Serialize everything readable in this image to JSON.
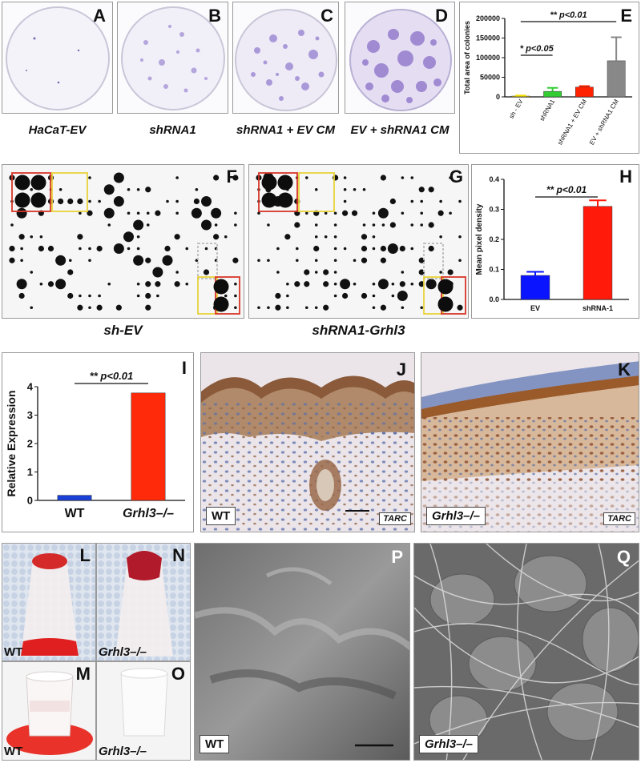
{
  "panels": {
    "A": {
      "label": "A",
      "caption": "HaCaT-EV"
    },
    "B": {
      "label": "B",
      "caption": "shRNA1"
    },
    "C": {
      "label": "C",
      "caption": "shRNA1 + EV CM"
    },
    "D": {
      "label": "D",
      "caption": "EV + shRNA1 CM"
    },
    "E": {
      "label": "E"
    },
    "F": {
      "label": "F",
      "caption": "sh-EV"
    },
    "G": {
      "label": "G",
      "caption": "shRNA1-Grhl3"
    },
    "H": {
      "label": "H"
    },
    "I": {
      "label": "I"
    },
    "J": {
      "label": "J",
      "tag_genotype": "WT",
      "tag_marker": "TARC"
    },
    "K": {
      "label": "K",
      "tag_genotype": "Grhl3–/–",
      "tag_marker": "TARC"
    },
    "L": {
      "label": "L",
      "tag": "WT"
    },
    "M": {
      "label": "M",
      "tag": "WT"
    },
    "N": {
      "label": "N",
      "tag": "Grhl3–/–"
    },
    "O": {
      "label": "O",
      "tag": "Grhl3–/–"
    },
    "P": {
      "label": "P",
      "tag": "WT"
    },
    "Q": {
      "label": "Q",
      "tag": "Grhl3–/–"
    }
  },
  "chart_data": [
    {
      "panel": "E",
      "type": "bar",
      "ylabel": "Total area of colonies",
      "categories": [
        "sh - EV",
        "shRNA1",
        "shRNA1 + EV CM",
        "EV + shRNA1 CM"
      ],
      "values": [
        2000,
        14000,
        25000,
        92000
      ],
      "errors": [
        1500,
        9000,
        2500,
        60000
      ],
      "colors": [
        "#f5e000",
        "#33cc33",
        "#ff2200",
        "#888888"
      ],
      "yticks": [
        "0",
        "50000",
        "100000",
        "150000",
        "200000"
      ],
      "ylim": [
        0,
        200000
      ],
      "annotations": [
        {
          "text": "* p<0.05",
          "from": 0,
          "to": 1
        },
        {
          "text": "** p<0.01",
          "from": 0,
          "to": 3
        }
      ]
    },
    {
      "panel": "H",
      "type": "bar",
      "ylabel": "Mean pixel density",
      "categories": [
        "EV",
        "shRNA-1"
      ],
      "values": [
        0.08,
        0.31
      ],
      "errors": [
        0.012,
        0.02
      ],
      "colors": [
        "#0a14ff",
        "#ff1a0a"
      ],
      "yticks": [
        "0.0",
        "0.1",
        "0.2",
        "0.3",
        "0.4"
      ],
      "ylim": [
        0,
        0.4
      ],
      "annotations": [
        {
          "text": "** p<0.01",
          "from": 0,
          "to": 1
        }
      ]
    },
    {
      "panel": "I",
      "type": "bar",
      "ylabel": "Relative Expression",
      "categories": [
        "WT",
        "Grhl3–/–"
      ],
      "values": [
        0.18,
        3.78
      ],
      "colors": [
        "#1a3fd6",
        "#ff2a0a"
      ],
      "yticks": [
        "0",
        "1",
        "2",
        "3",
        "4"
      ],
      "ylim": [
        0,
        4
      ],
      "annotations": [
        {
          "text": "** p<0.01",
          "from": 0,
          "to": 1
        }
      ]
    }
  ],
  "colors": {
    "colony_purple": "#8a6fc7",
    "ihc_brown": "#9a5a2a",
    "ihc_blue": "#5a6fa8",
    "blot_box_red": "#d8362a",
    "blot_box_yellow": "#e8d23a",
    "blood_red": "#d42a2a"
  }
}
